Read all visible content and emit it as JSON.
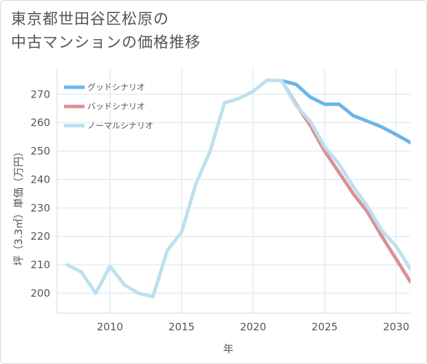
{
  "header": {
    "title_line1": "東京都世田谷区松原の",
    "title_line2": "中古マンションの価格推移"
  },
  "chart_data": {
    "type": "line",
    "xlabel": "年",
    "ylabel": "坪（3.3㎡）単価（万円）",
    "xlim": [
      2006.3,
      2031
    ],
    "ylim": [
      193,
      279
    ],
    "xticks": [
      2010,
      2015,
      2020,
      2025,
      2030
    ],
    "yticks": [
      200,
      210,
      220,
      230,
      240,
      250,
      260,
      270
    ],
    "legend_position": "top-left",
    "series": [
      {
        "name": "グッドシナリオ",
        "color": "#6cb4ea",
        "x": [
          2022,
          2023,
          2024,
          2025,
          2026,
          2027,
          2028,
          2029,
          2030,
          2031
        ],
        "y": [
          274.8,
          273.5,
          269,
          266.5,
          266.5,
          262.5,
          260.5,
          258.5,
          255.8,
          253
        ]
      },
      {
        "name": "バッドシナリオ",
        "color": "#de8f94",
        "x": [
          2022,
          2023,
          2024,
          2025,
          2026,
          2027,
          2028,
          2029,
          2030,
          2031
        ],
        "y": [
          274.8,
          266.5,
          259,
          250,
          242.5,
          235,
          228.5,
          220,
          212,
          204
        ]
      },
      {
        "name": "ノーマルシナリオ",
        "color": "#bde0ef",
        "x": [
          2007,
          2008,
          2009,
          2010,
          2011,
          2012,
          2013,
          2014,
          2015,
          2016,
          2017,
          2018,
          2019,
          2020,
          2021,
          2022,
          2023,
          2024,
          2025,
          2026,
          2027,
          2028,
          2029,
          2030,
          2031
        ],
        "y": [
          210,
          207.5,
          200,
          209.5,
          203,
          200,
          198.8,
          215,
          221.5,
          238.5,
          250,
          267,
          268.5,
          271,
          275,
          274.8,
          266,
          260.5,
          251.5,
          245.5,
          237.5,
          230.5,
          222,
          216.5,
          208.5
        ]
      }
    ]
  }
}
